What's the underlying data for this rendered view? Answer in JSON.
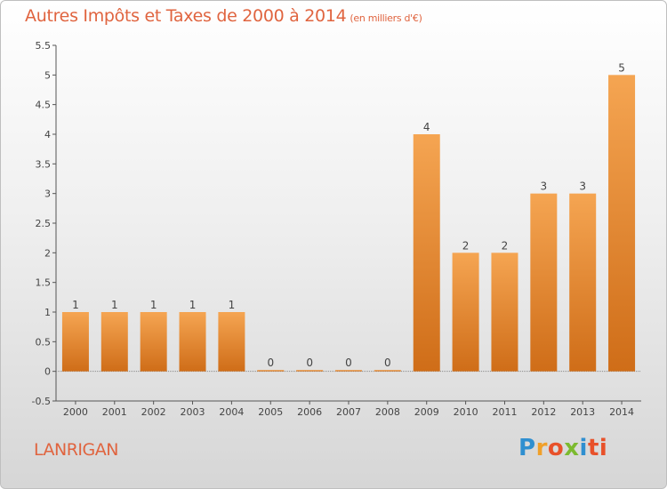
{
  "header": {
    "title": "Autres Impôts et Taxes de 2000 à 2014",
    "unit": "(en milliers d'€)"
  },
  "footer": {
    "commune": "LANRIGAN",
    "logo_letters": [
      "P",
      "r",
      "o",
      "x",
      "i",
      "ti"
    ]
  },
  "colors": {
    "bar_top": "#f5a552",
    "bar_bottom": "#cf6d18",
    "title": "#e0643f"
  },
  "chart_data": {
    "type": "bar",
    "title": "Autres Impôts et Taxes de 2000 à 2014",
    "subtitle": "(en milliers d'€)",
    "xlabel": "",
    "ylabel": "",
    "categories": [
      "2000",
      "2001",
      "2002",
      "2003",
      "2004",
      "2005",
      "2006",
      "2007",
      "2008",
      "2009",
      "2010",
      "2011",
      "2012",
      "2013",
      "2014"
    ],
    "values": [
      1,
      1,
      1,
      1,
      1,
      0,
      0,
      0,
      0,
      4,
      2,
      2,
      3,
      3,
      5
    ],
    "data_labels": [
      "1",
      "1",
      "1",
      "1",
      "1",
      "0",
      "0",
      "0",
      "0",
      "4",
      "2",
      "2",
      "3",
      "3",
      "5"
    ],
    "ylim": [
      -0.5,
      5.5
    ],
    "yticks": [
      "-0.5",
      "0",
      "0.5",
      "1",
      "1.5",
      "2",
      "2.5",
      "3",
      "3.5",
      "4",
      "4.5",
      "5",
      "5.5"
    ],
    "grid": false,
    "legend": "none"
  }
}
